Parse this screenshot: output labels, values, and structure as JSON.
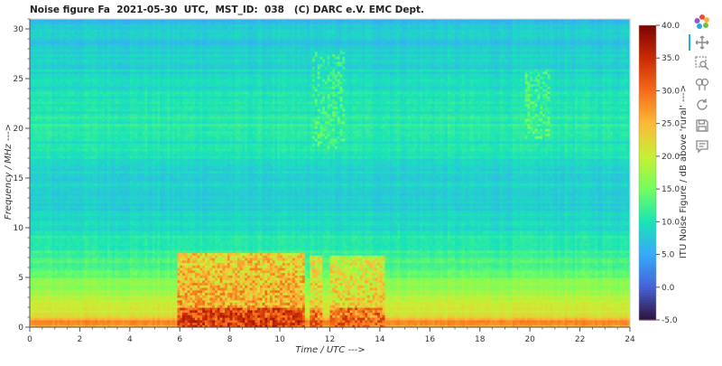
{
  "title": "Noise figure Fa  2021-05-30  UTC,  MST_ID:  038   (C) DARC e.V. EMC Dept.",
  "chart_data": {
    "type": "heatmap",
    "xlabel": "Time / UTC --->",
    "ylabel": "Frequency / MHz --->",
    "colorbar_label": "ITU Noise Figure / dB above 'rural' --->",
    "x_range": [
      0,
      24
    ],
    "y_range": [
      0,
      31
    ],
    "x_ticks": [
      0,
      2,
      4,
      6,
      8,
      10,
      12,
      14,
      16,
      18,
      20,
      22,
      24
    ],
    "y_ticks": [
      0,
      5,
      10,
      15,
      20,
      25,
      30
    ],
    "colorbar_range": [
      -5,
      40
    ],
    "colorbar_ticks": [
      "40.0",
      "35.0",
      "30.0",
      "25.0",
      "20.0",
      "15.0",
      "10.0",
      "5.0",
      "0.0",
      "-5.0"
    ],
    "colormap": [
      "#30123b",
      "#4662d7",
      "#36aaf9",
      "#1ae4b6",
      "#72fe5e",
      "#c8ef34",
      "#faba39",
      "#f66b19",
      "#ca2a04",
      "#7a0403"
    ],
    "frequency_profile_db": [
      {
        "f": 0.0,
        "db": 24
      },
      {
        "f": 0.5,
        "db": 30
      },
      {
        "f": 1.0,
        "db": 22
      },
      {
        "f": 2.0,
        "db": 20
      },
      {
        "f": 3.0,
        "db": 19
      },
      {
        "f": 4.0,
        "db": 17
      },
      {
        "f": 5.0,
        "db": 15
      },
      {
        "f": 6.0,
        "db": 13
      },
      {
        "f": 7.0,
        "db": 12
      },
      {
        "f": 8.5,
        "db": 11
      },
      {
        "f": 10.0,
        "db": 9
      },
      {
        "f": 13.0,
        "db": 8
      },
      {
        "f": 16.0,
        "db": 9
      },
      {
        "f": 20.0,
        "db": 11
      },
      {
        "f": 25.0,
        "db": 9
      },
      {
        "f": 31.0,
        "db": 7
      }
    ],
    "interference_events": [
      {
        "t_start": 5.9,
        "t_end": 11.0,
        "f_min": 0,
        "f_max": 7.5,
        "level_db": 27
      },
      {
        "t_start": 11.2,
        "t_end": 11.7,
        "f_min": 0,
        "f_max": 7.2,
        "level_db": 24
      },
      {
        "t_start": 12.0,
        "t_end": 14.2,
        "f_min": 0,
        "f_max": 7.2,
        "level_db": 24
      },
      {
        "t_start": 11.3,
        "t_end": 12.6,
        "f_min": 18,
        "f_max": 28,
        "level_db": 13
      },
      {
        "t_start": 19.8,
        "t_end": 20.8,
        "f_min": 19,
        "f_max": 26,
        "level_db": 14
      }
    ]
  },
  "toolbar": {
    "tools": [
      {
        "name": "bokeh-logo-icon"
      },
      {
        "name": "pan-icon"
      },
      {
        "name": "box-zoom-icon"
      },
      {
        "name": "wheel-zoom-icon"
      },
      {
        "name": "reset-icon"
      },
      {
        "name": "save-icon"
      },
      {
        "name": "hover-icon"
      }
    ]
  }
}
